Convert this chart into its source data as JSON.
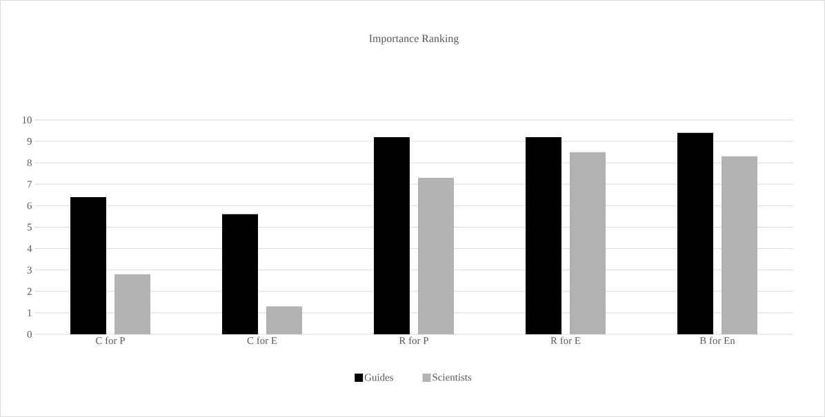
{
  "chart_data": {
    "type": "bar",
    "title": "Importance Ranking",
    "categories": [
      "C for P",
      "C for E",
      "R for P",
      "R for E",
      "B for En"
    ],
    "series": [
      {
        "name": "Guides",
        "color": "#000000",
        "values": [
          6.4,
          5.6,
          9.2,
          9.2,
          9.4
        ]
      },
      {
        "name": "Scientists",
        "color": "#b2b2b2",
        "values": [
          2.8,
          1.3,
          7.3,
          8.5,
          8.3
        ]
      }
    ],
    "ylim": [
      0,
      10
    ],
    "yticks": [
      0,
      1,
      2,
      3,
      4,
      5,
      6,
      7,
      8,
      9,
      10
    ],
    "grid": "y",
    "legend": "bottom"
  }
}
